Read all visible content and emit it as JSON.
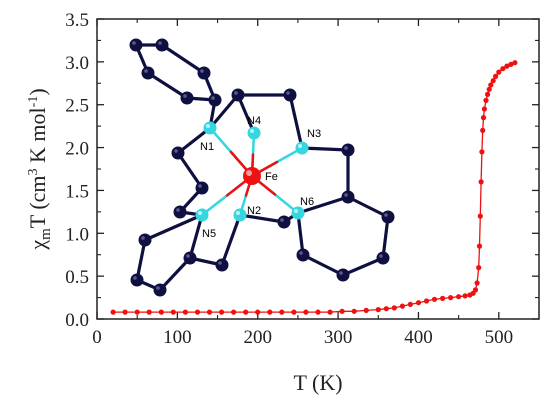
{
  "chart_data": {
    "type": "scatter",
    "xlabel": "T (K)",
    "ylabel_parts": {
      "main": "χ",
      "sub": "m",
      "rest": "T (cm",
      "sup": "3",
      "tail": " K mol",
      "sup2": "-1",
      "close": ")"
    },
    "xlim": [
      0,
      550
    ],
    "ylim": [
      0,
      3.5
    ],
    "xticks": [
      0,
      100,
      200,
      300,
      400,
      500
    ],
    "yticks": [
      0.0,
      0.5,
      1.0,
      1.5,
      2.0,
      2.5,
      3.0,
      3.5
    ],
    "xtick_labels": [
      "0",
      "100",
      "200",
      "300",
      "400",
      "500"
    ],
    "ytick_labels": [
      "0.0",
      "0.5",
      "1.0",
      "1.5",
      "2.0",
      "2.5",
      "3.0",
      "3.5"
    ],
    "grid": false,
    "series": [
      {
        "color": "#ee1111",
        "x": [
          20,
          35,
          50,
          65,
          80,
          95,
          110,
          125,
          140,
          155,
          170,
          185,
          200,
          215,
          230,
          245,
          260,
          275,
          290,
          305,
          320,
          335,
          350,
          360,
          370,
          380,
          390,
          400,
          410,
          420,
          430,
          440,
          450,
          458,
          464,
          468,
          471,
          473,
          475,
          476,
          477,
          478,
          479,
          480,
          481,
          482,
          484,
          486,
          488,
          490,
          493,
          496,
          500,
          505,
          510,
          515,
          520
        ],
        "y": [
          0.08,
          0.08,
          0.08,
          0.08,
          0.08,
          0.08,
          0.08,
          0.08,
          0.08,
          0.08,
          0.08,
          0.08,
          0.08,
          0.08,
          0.08,
          0.08,
          0.08,
          0.08,
          0.08,
          0.09,
          0.09,
          0.1,
          0.11,
          0.12,
          0.13,
          0.15,
          0.17,
          0.19,
          0.21,
          0.23,
          0.24,
          0.25,
          0.26,
          0.27,
          0.28,
          0.3,
          0.34,
          0.42,
          0.6,
          0.85,
          1.2,
          1.6,
          1.95,
          2.2,
          2.35,
          2.45,
          2.55,
          2.62,
          2.68,
          2.73,
          2.78,
          2.83,
          2.88,
          2.92,
          2.95,
          2.97,
          2.99
        ]
      }
    ]
  },
  "inset": {
    "description_free": true,
    "center_atom": {
      "label": "Fe",
      "color": "#ee1111"
    },
    "nitrogen_color": "#35d6e0",
    "carbon_color": "#101040",
    "nitrogen_labels": [
      "N1",
      "N2",
      "N3",
      "N4",
      "N5",
      "N6"
    ]
  }
}
